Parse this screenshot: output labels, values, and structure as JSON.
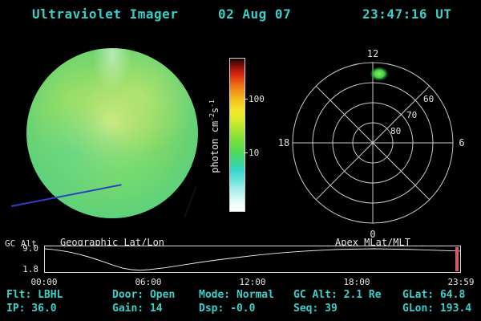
{
  "colors": {
    "cyan": "#3ccfc9",
    "label": "#e2e2e2",
    "line": "#f0f0f0",
    "grid": "#c9c9c9",
    "cursor": "#d45a68",
    "aurora": "#49e14f",
    "terminator": "#2e3fc4"
  },
  "header": {
    "title": "Ultraviolet Imager",
    "date": "02 Aug 07",
    "time": "23:47:16 UT"
  },
  "disk": {
    "caption": "Geographic Lat/Lon"
  },
  "colorbar": {
    "unit_prefix": "photon cm",
    "unit_sup1": "-2",
    "unit_mid": "s",
    "unit_sup2": "-1",
    "ticks": [
      "100",
      "10"
    ]
  },
  "polar": {
    "caption": "Apex MLat/MLT",
    "hour_top": "12",
    "hour_left": "18",
    "hour_right": "6",
    "hour_bottom": "0",
    "lat_rings": [
      "60",
      "70",
      "80"
    ]
  },
  "chart_data": {
    "type": "line",
    "title": "",
    "ylabel": "GC Alt",
    "yticks": [
      "9.0",
      "1.8"
    ],
    "xticks": [
      "00:00",
      "06:00",
      "12:00",
      "18:00",
      "23:59"
    ],
    "ylim": [
      1.2,
      9.8
    ],
    "xlim_minutes": [
      0,
      1439
    ],
    "grid": false,
    "series": [
      {
        "name": "GC Alt (Re)",
        "points": [
          [
            0,
            9.0
          ],
          [
            30,
            8.7
          ],
          [
            60,
            8.3
          ],
          [
            90,
            7.8
          ],
          [
            120,
            7.1
          ],
          [
            150,
            6.3
          ],
          [
            180,
            5.4
          ],
          [
            210,
            4.4
          ],
          [
            240,
            3.4
          ],
          [
            270,
            2.5
          ],
          [
            300,
            2.0
          ],
          [
            330,
            1.8
          ],
          [
            360,
            2.0
          ],
          [
            420,
            2.7
          ],
          [
            480,
            3.6
          ],
          [
            540,
            4.5
          ],
          [
            600,
            5.3
          ],
          [
            660,
            6.0
          ],
          [
            720,
            6.7
          ],
          [
            780,
            7.3
          ],
          [
            840,
            7.8
          ],
          [
            900,
            8.2
          ],
          [
            960,
            8.5
          ],
          [
            1020,
            8.8
          ],
          [
            1080,
            8.9
          ],
          [
            1140,
            9.0
          ],
          [
            1200,
            8.9
          ],
          [
            1260,
            8.8
          ],
          [
            1320,
            8.6
          ],
          [
            1380,
            8.4
          ],
          [
            1439,
            8.2
          ]
        ]
      }
    ]
  },
  "status": {
    "rows": [
      [
        "Flt: LBHL",
        "Door: Open",
        "Mode: Normal",
        "GC Alt: 2.1 Re",
        "GLat: 64.8"
      ],
      [
        "IP: 36.0",
        "Gain: 14",
        "Dsp: -0.0",
        "Seq: 39",
        "GLon: 193.4"
      ]
    ]
  }
}
